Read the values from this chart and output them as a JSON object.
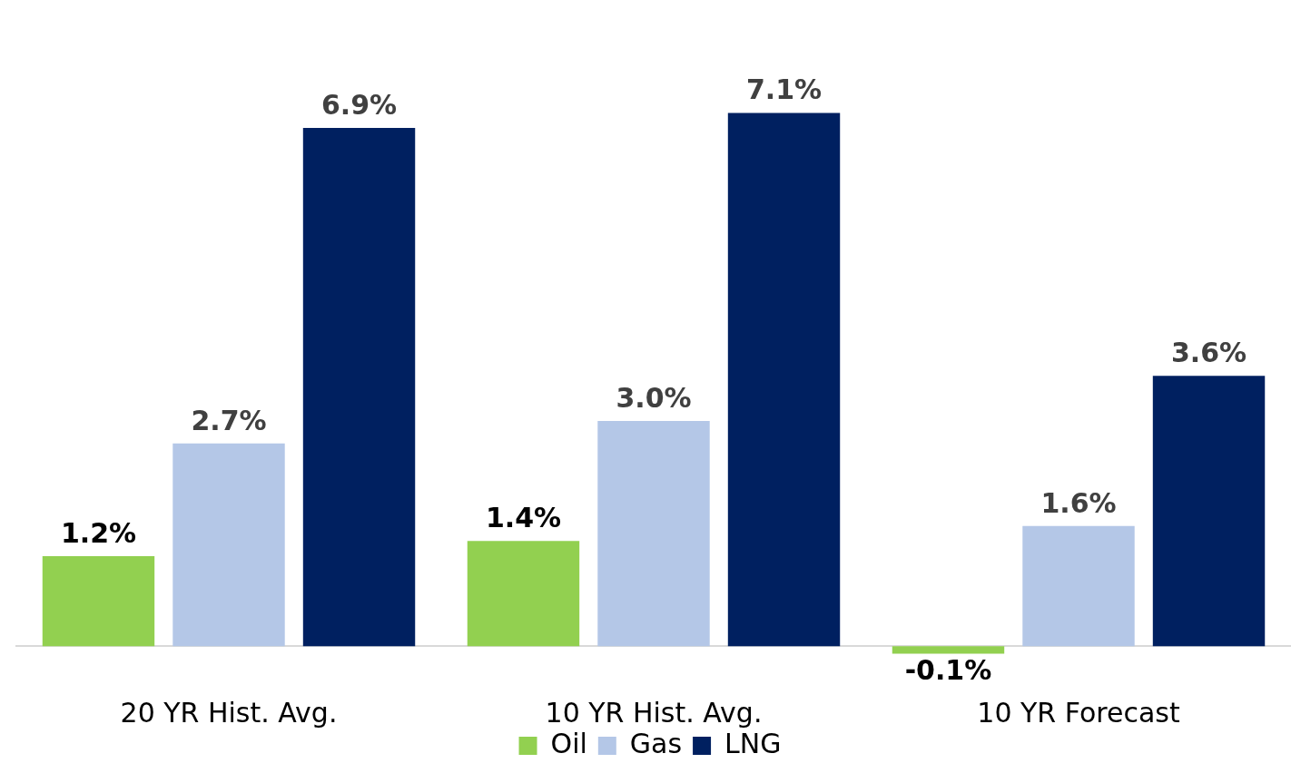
{
  "chart_data": {
    "type": "bar",
    "categories": [
      "20 YR Hist. Avg.",
      "10 YR Hist. Avg.",
      "10 YR Forecast"
    ],
    "series": [
      {
        "name": "Oil",
        "color": "#92d050",
        "values": [
          1.2,
          1.4,
          -0.1
        ],
        "value_labels": [
          "1.2%",
          "1.4%",
          "-0.1%"
        ]
      },
      {
        "name": "Gas",
        "color": "#b4c7e7",
        "values": [
          2.7,
          3.0,
          1.6
        ],
        "value_labels": [
          "2.7%",
          "3.0%",
          "1.6%"
        ]
      },
      {
        "name": "LNG",
        "color": "#002060",
        "values": [
          6.9,
          7.1,
          3.6
        ],
        "value_labels": [
          "6.9%",
          "7.1%",
          "3.6%"
        ]
      }
    ],
    "tick_labels": "x",
    "grid": false,
    "legend": "bottom"
  }
}
